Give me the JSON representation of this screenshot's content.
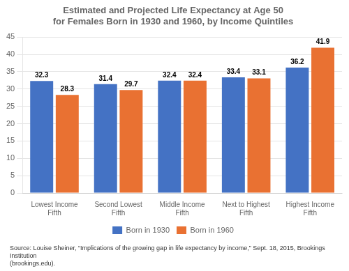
{
  "chart_data": {
    "type": "bar",
    "title": "Estimated and Projected Life Expectancy at Age 50\nfor Females Born in 1930 and 1960, by Income Quintiles",
    "categories": [
      "Lowest Income\nFifth",
      "Second Lowest\nFifth",
      "Middle Income\nFifth",
      "Next to Highest\nFifth",
      "Highest Income\nFifth"
    ],
    "series": [
      {
        "name": "Born in 1930",
        "color": "#4472C4",
        "values": [
          32.3,
          31.4,
          32.4,
          33.4,
          36.2
        ]
      },
      {
        "name": "Born in 1960",
        "color": "#E97132",
        "values": [
          28.3,
          29.7,
          32.4,
          33.1,
          41.9
        ]
      }
    ],
    "ylim": [
      0,
      45
    ],
    "yticks": [
      0,
      5,
      10,
      15,
      20,
      25,
      30,
      35,
      40,
      45
    ],
    "grid": true,
    "legend": "bottom",
    "data_labels": true,
    "annotations": [
      "Source: Louise Sheiner, “Implications of the growing gap in life expectancy by income,” Sept. 18, 2015, Brookings Institution\n(brookings.edu)."
    ]
  }
}
